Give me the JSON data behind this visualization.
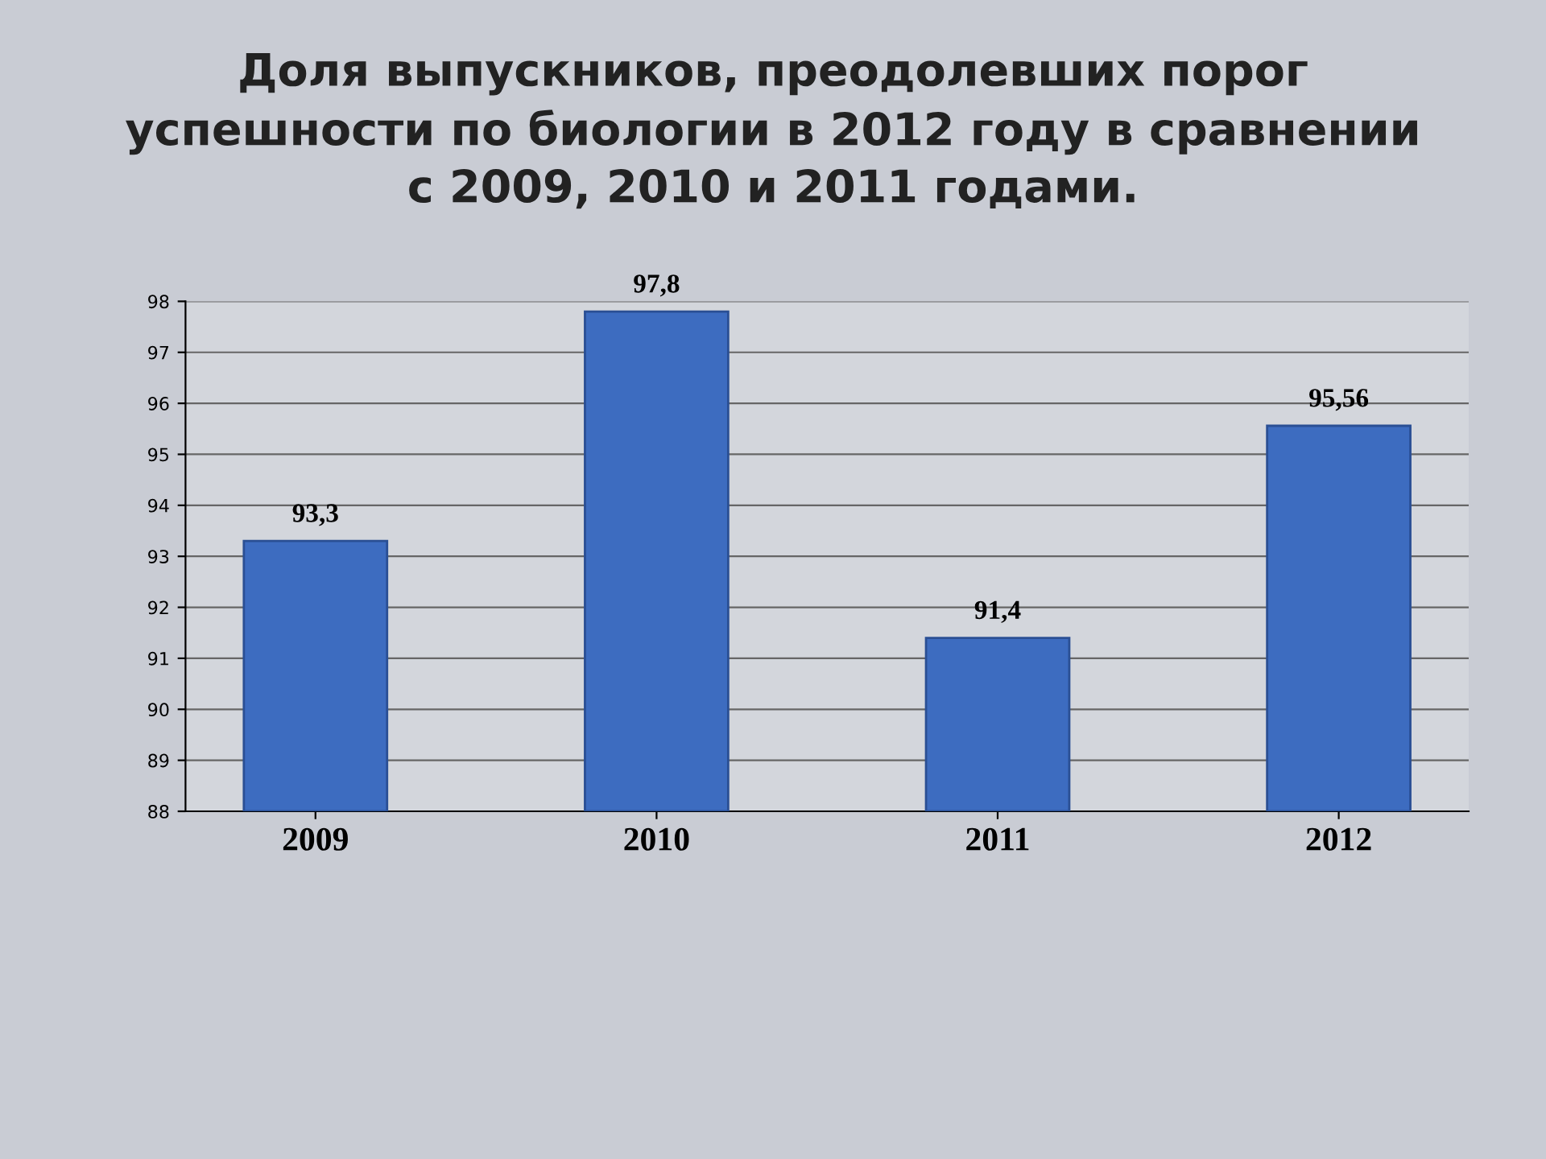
{
  "chart_data": {
    "type": "bar",
    "title": "Доля выпускников, преодолевших порог\nуспешности по биологии в 2012 году в сравнении\nс 2009, 2010 и 2011 годами.",
    "categories": [
      "2009",
      "2010",
      "2011",
      "2012"
    ],
    "values": [
      93.3,
      97.8,
      91.4,
      95.56
    ],
    "value_labels": [
      "93,3",
      "97,8",
      "91,4",
      "95,56"
    ],
    "color": "#3d6cc0",
    "ylim": [
      88,
      98
    ],
    "yticks": [
      88,
      89,
      90,
      91,
      92,
      93,
      94,
      95,
      96,
      97,
      98
    ],
    "grid": "y",
    "legend": false
  }
}
